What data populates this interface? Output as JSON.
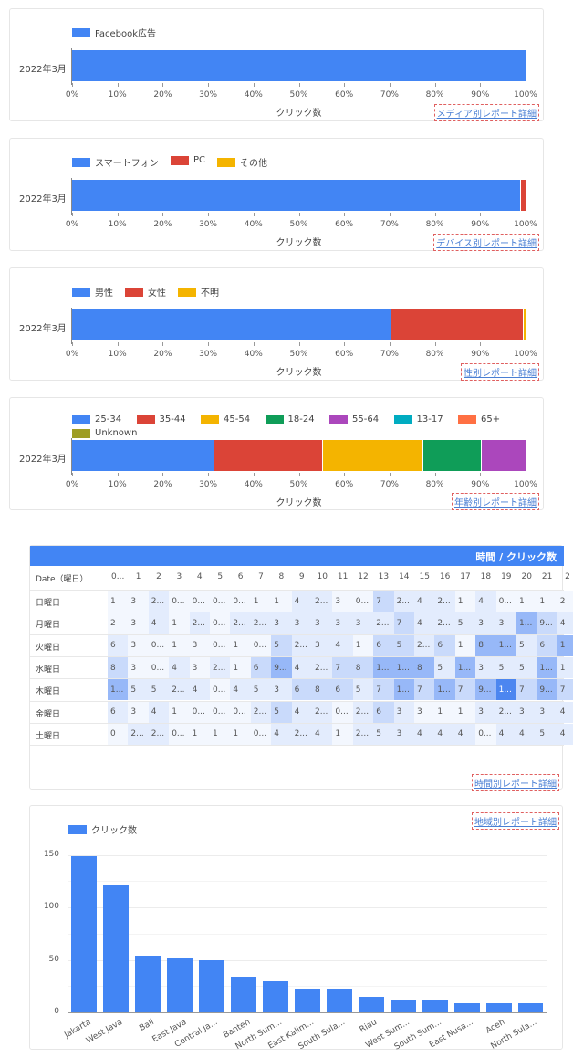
{
  "colors": {
    "blue": "#4285f4",
    "red": "#db4437",
    "yellow": "#f4b400",
    "green": "#0f9d58",
    "purple": "#ab47bc",
    "teal": "#00acc1",
    "orange": "#ff7043",
    "olive": "#9e9d24"
  },
  "bar_charts": [
    {
      "row_label": "2022年3月",
      "x_title": "クリック数",
      "x_ticks": [
        "0%",
        "10%",
        "20%",
        "30%",
        "40%",
        "50%",
        "60%",
        "70%",
        "80%",
        "90%",
        "100%"
      ],
      "legend": [
        {
          "label": "Facebook広告",
          "color": "#4285f4"
        }
      ],
      "segments": [
        {
          "name": "Facebook広告",
          "value": 100,
          "color": "#4285f4"
        }
      ],
      "link": "メディア別レポート詳細"
    },
    {
      "row_label": "2022年3月",
      "x_title": "クリック数",
      "x_ticks": [
        "0%",
        "10%",
        "20%",
        "30%",
        "40%",
        "50%",
        "60%",
        "70%",
        "80%",
        "90%",
        "100%"
      ],
      "legend": [
        {
          "label": "スマートフォン",
          "color": "#4285f4"
        },
        {
          "label": "PC",
          "color": "#db4437"
        },
        {
          "label": "その他",
          "color": "#f4b400"
        }
      ],
      "segments": [
        {
          "name": "スマートフォン",
          "value": 99,
          "color": "#4285f4"
        },
        {
          "name": "PC",
          "value": 1,
          "color": "#db4437"
        }
      ],
      "link": "デバイス別レポート詳細"
    },
    {
      "row_label": "2022年3月",
      "x_title": "クリック数",
      "x_ticks": [
        "0%",
        "10%",
        "20%",
        "30%",
        "40%",
        "50%",
        "60%",
        "70%",
        "80%",
        "90%",
        "100%"
      ],
      "legend": [
        {
          "label": "男性",
          "color": "#4285f4"
        },
        {
          "label": "女性",
          "color": "#db4437"
        },
        {
          "label": "不明",
          "color": "#f4b400"
        }
      ],
      "segments": [
        {
          "name": "男性",
          "value": 70.5,
          "color": "#4285f4"
        },
        {
          "name": "女性",
          "value": 29,
          "color": "#db4437"
        },
        {
          "name": "不明",
          "value": 0.5,
          "color": "#f4b400"
        }
      ],
      "link": "性別レポート詳細"
    },
    {
      "row_label": "2022年3月",
      "x_title": "クリック数",
      "x_ticks": [
        "0%",
        "10%",
        "20%",
        "30%",
        "40%",
        "50%",
        "60%",
        "70%",
        "80%",
        "90%",
        "100%"
      ],
      "legend": [
        {
          "label": "25-34",
          "color": "#4285f4"
        },
        {
          "label": "35-44",
          "color": "#db4437"
        },
        {
          "label": "45-54",
          "color": "#f4b400"
        },
        {
          "label": "18-24",
          "color": "#0f9d58"
        },
        {
          "label": "55-64",
          "color": "#ab47bc"
        },
        {
          "label": "13-17",
          "color": "#00acc1"
        },
        {
          "label": "65+",
          "color": "#ff7043"
        },
        {
          "label": "Unknown",
          "color": "#9e9d24"
        }
      ],
      "segments": [
        {
          "name": "25-34",
          "value": 31.3,
          "color": "#4285f4"
        },
        {
          "name": "35-44",
          "value": 24,
          "color": "#db4437"
        },
        {
          "name": "45-54",
          "value": 22.2,
          "color": "#f4b400"
        },
        {
          "name": "18-24",
          "value": 12.9,
          "color": "#0f9d58"
        },
        {
          "name": "55-64",
          "value": 9.6,
          "color": "#ab47bc"
        }
      ],
      "link": "年齢別レポート詳細"
    }
  ],
  "heatmap": {
    "title": "時間 / クリック数",
    "corner_label": "Date（曜日）",
    "hours": [
      "0...",
      "1",
      "2",
      "3",
      "4",
      "5",
      "6",
      "7",
      "8",
      "9",
      "10",
      "11",
      "12",
      "13",
      "14",
      "15",
      "16",
      "17",
      "18",
      "19",
      "20",
      "21",
      "2"
    ],
    "rows": [
      {
        "day": "日曜日",
        "values": [
          "1",
          "3",
          "2...",
          "0...",
          "0...",
          "0...",
          "0...",
          "1",
          "1",
          "4",
          "2...",
          "3",
          "0...",
          "7",
          "2...",
          "4",
          "2...",
          "1",
          "4",
          "0...",
          "1",
          "1",
          "2"
        ],
        "levels": [
          1,
          1,
          2,
          1,
          1,
          1,
          1,
          1,
          1,
          2,
          2,
          1,
          1,
          3,
          2,
          2,
          2,
          1,
          2,
          1,
          1,
          1,
          1
        ]
      },
      {
        "day": "月曜日",
        "values": [
          "2",
          "3",
          "4",
          "1",
          "2...",
          "0...",
          "2...",
          "2...",
          "3",
          "3",
          "3",
          "3",
          "3",
          "2...",
          "7",
          "4",
          "2...",
          "5",
          "3",
          "3",
          "1...",
          "9...",
          "4"
        ],
        "levels": [
          1,
          1,
          2,
          1,
          2,
          1,
          2,
          2,
          2,
          2,
          2,
          2,
          2,
          2,
          3,
          2,
          2,
          2,
          2,
          2,
          4,
          3,
          2
        ]
      },
      {
        "day": "火曜日",
        "values": [
          "6",
          "3",
          "0...",
          "1",
          "3",
          "0...",
          "1",
          "0...",
          "5",
          "2...",
          "3",
          "4",
          "1",
          "6",
          "5",
          "2...",
          "6",
          "1",
          "8",
          "1...",
          "5",
          "6",
          "1"
        ],
        "levels": [
          2,
          1,
          1,
          1,
          1,
          1,
          1,
          1,
          3,
          2,
          2,
          2,
          1,
          3,
          3,
          2,
          3,
          1,
          4,
          4,
          2,
          3,
          4
        ]
      },
      {
        "day": "水曜日",
        "values": [
          "8",
          "3",
          "0...",
          "4",
          "3",
          "2...",
          "1",
          "6",
          "9...",
          "4",
          "2...",
          "7",
          "8",
          "1...",
          "1...",
          "8",
          "5",
          "1...",
          "3",
          "5",
          "5",
          "1...",
          "1"
        ],
        "levels": [
          3,
          1,
          1,
          2,
          1,
          2,
          1,
          3,
          4,
          2,
          2,
          3,
          3,
          4,
          4,
          4,
          2,
          4,
          2,
          2,
          2,
          4,
          2
        ]
      },
      {
        "day": "木曜日",
        "values": [
          "1...",
          "5",
          "5",
          "2...",
          "4",
          "0...",
          "4",
          "5",
          "3",
          "6",
          "8",
          "6",
          "5",
          "7",
          "1...",
          "7",
          "1...",
          "7",
          "9...",
          "1...",
          "7",
          "9...",
          "7"
        ],
        "levels": [
          4,
          2,
          2,
          2,
          2,
          1,
          2,
          2,
          2,
          3,
          3,
          3,
          2,
          3,
          4,
          3,
          4,
          3,
          4,
          5,
          3,
          4,
          3
        ]
      },
      {
        "day": "金曜日",
        "values": [
          "6",
          "3",
          "4",
          "1",
          "0...",
          "0...",
          "0...",
          "2...",
          "5",
          "4",
          "2...",
          "0...",
          "2...",
          "6",
          "3",
          "3",
          "1",
          "1",
          "3",
          "2...",
          "3",
          "3",
          "4"
        ],
        "levels": [
          2,
          1,
          2,
          1,
          1,
          1,
          1,
          2,
          3,
          2,
          2,
          1,
          2,
          3,
          2,
          1,
          1,
          1,
          2,
          2,
          2,
          2,
          2
        ]
      },
      {
        "day": "土曜日",
        "values": [
          "0",
          "2...",
          "2...",
          "0...",
          "1",
          "1",
          "1",
          "0...",
          "4",
          "2...",
          "4",
          "1",
          "2...",
          "5",
          "3",
          "4",
          "4",
          "4",
          "0...",
          "4",
          "4",
          "5",
          "4"
        ],
        "levels": [
          1,
          2,
          2,
          1,
          1,
          1,
          1,
          1,
          2,
          2,
          2,
          1,
          2,
          2,
          2,
          2,
          2,
          2,
          1,
          2,
          2,
          2,
          2
        ]
      }
    ],
    "link": "時間別レポート詳細"
  },
  "region": {
    "link": "地域別レポート詳細",
    "legend": "クリック数"
  },
  "chart_data": {
    "type": "bar",
    "series": [
      {
        "name": "クリック数",
        "values": [
          149,
          121,
          54,
          51,
          50,
          34,
          30,
          23,
          22,
          15,
          11,
          11,
          9,
          9,
          9
        ]
      }
    ],
    "categories": [
      "Jakarta",
      "West Java",
      "Bali",
      "East Java",
      "Central Ja...",
      "Banten",
      "North Sum...",
      "East Kalim...",
      "South Sula...",
      "Riau",
      "West Sum...",
      "South Sum...",
      "East Nusa...",
      "Aceh",
      "North Sula..."
    ],
    "ylim": [
      0,
      160
    ],
    "y_ticks": [
      "0",
      "50",
      "100",
      "150"
    ]
  }
}
